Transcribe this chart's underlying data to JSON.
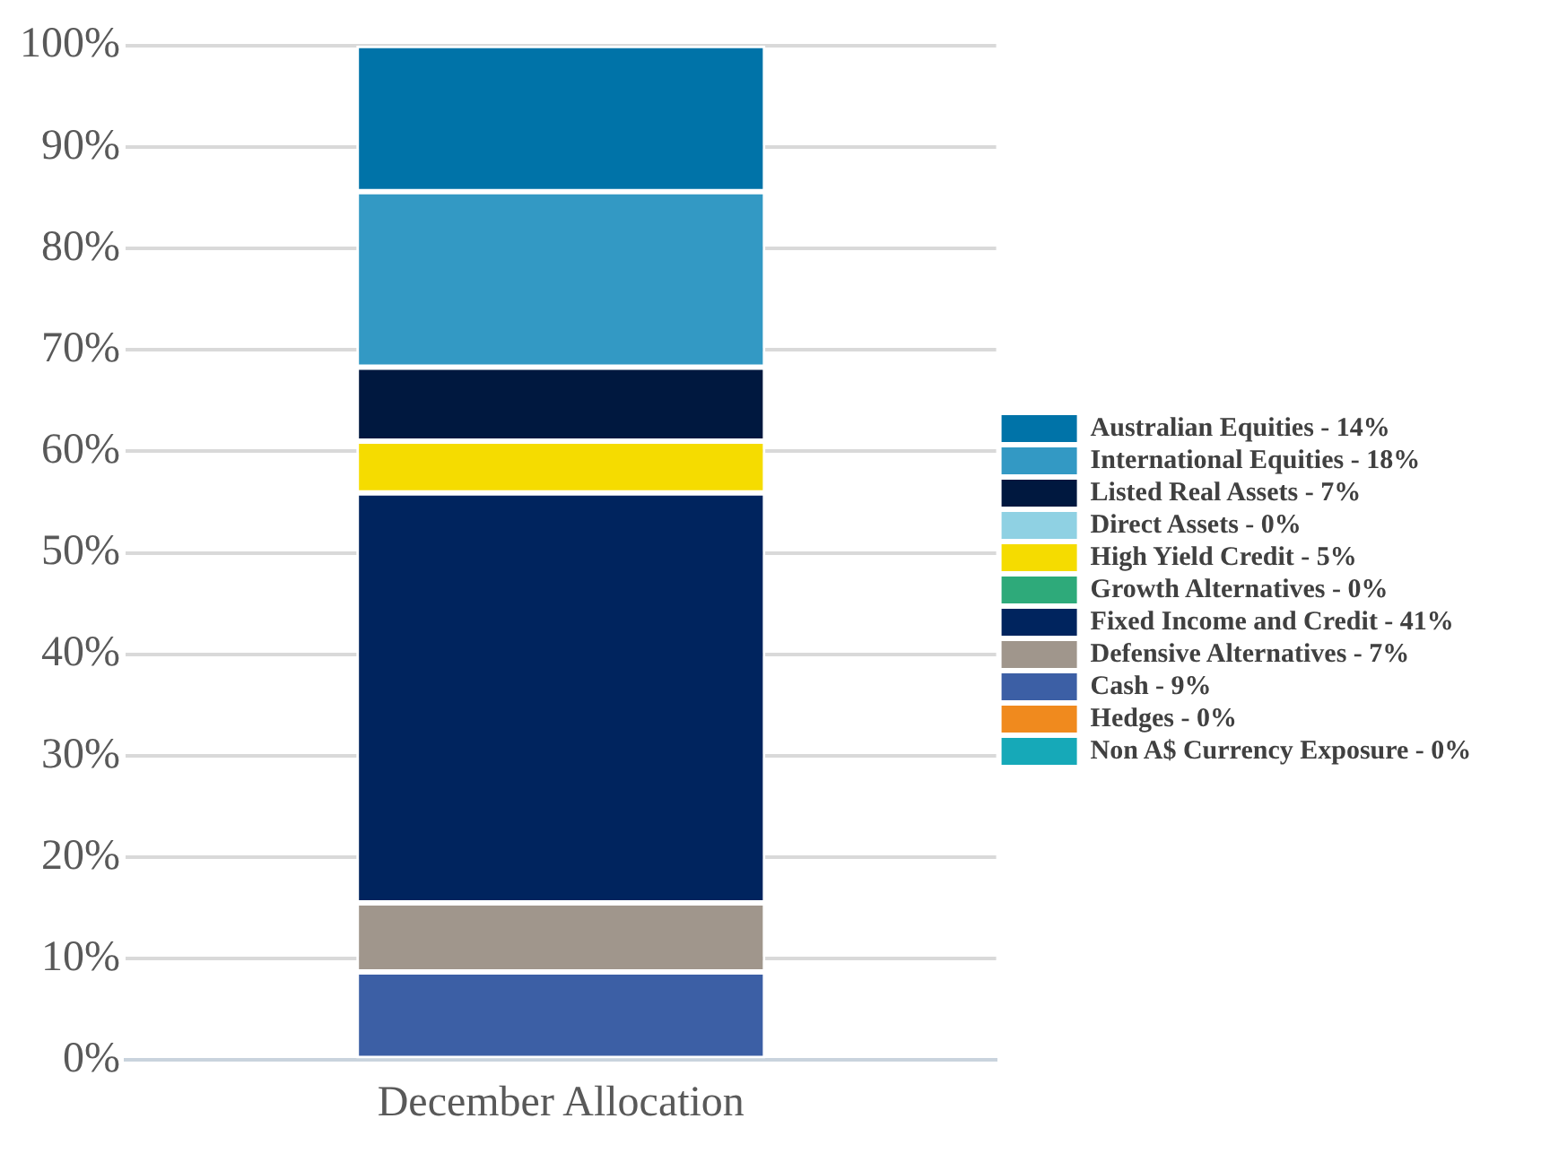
{
  "chart_data": {
    "type": "bar",
    "stacked": true,
    "categories": [
      "December Allocation"
    ],
    "series": [
      {
        "name": "Non A$ Currency Exposure - 0%",
        "color": "#16a9b8",
        "values": [
          0
        ]
      },
      {
        "name": "Hedges - 0%",
        "color": "#f08a1e",
        "values": [
          0
        ]
      },
      {
        "name": "Cash - 9%",
        "color": "#3c5fa5",
        "values": [
          8.7
        ]
      },
      {
        "name": "Defensive Alternatives - 7%",
        "color": "#a0968c",
        "values": [
          6.8
        ]
      },
      {
        "name": "Fixed Income and Credit - 41%",
        "color": "#00245e",
        "values": [
          40.4
        ]
      },
      {
        "name": "Growth Alternatives - 0%",
        "color": "#2eaa7a",
        "values": [
          0
        ]
      },
      {
        "name": "High Yield Credit - 5%",
        "color": "#f5dc00",
        "values": [
          5.1
        ]
      },
      {
        "name": "Direct Assets - 0%",
        "color": "#8fd1e3",
        "values": [
          0
        ]
      },
      {
        "name": "Listed Real Assets - 7%",
        "color": "#00183f",
        "values": [
          7.3
        ]
      },
      {
        "name": "International Equities - 18%",
        "color": "#3399c4",
        "values": [
          17.3
        ]
      },
      {
        "name": "Australian Equities - 14%",
        "color": "#0073a8",
        "values": [
          14.4
        ]
      }
    ],
    "ylim": [
      0,
      100
    ],
    "yticks": [
      {
        "value": 0,
        "label": "0%"
      },
      {
        "value": 10,
        "label": "10%"
      },
      {
        "value": 20,
        "label": "20%"
      },
      {
        "value": 30,
        "label": "30%"
      },
      {
        "value": 40,
        "label": "40%"
      },
      {
        "value": 50,
        "label": "50%"
      },
      {
        "value": 60,
        "label": "60%"
      },
      {
        "value": 70,
        "label": "70%"
      },
      {
        "value": 80,
        "label": "80%"
      },
      {
        "value": 90,
        "label": "90%"
      },
      {
        "value": 100,
        "label": "100%"
      }
    ],
    "grid": "y",
    "legend": "right"
  }
}
